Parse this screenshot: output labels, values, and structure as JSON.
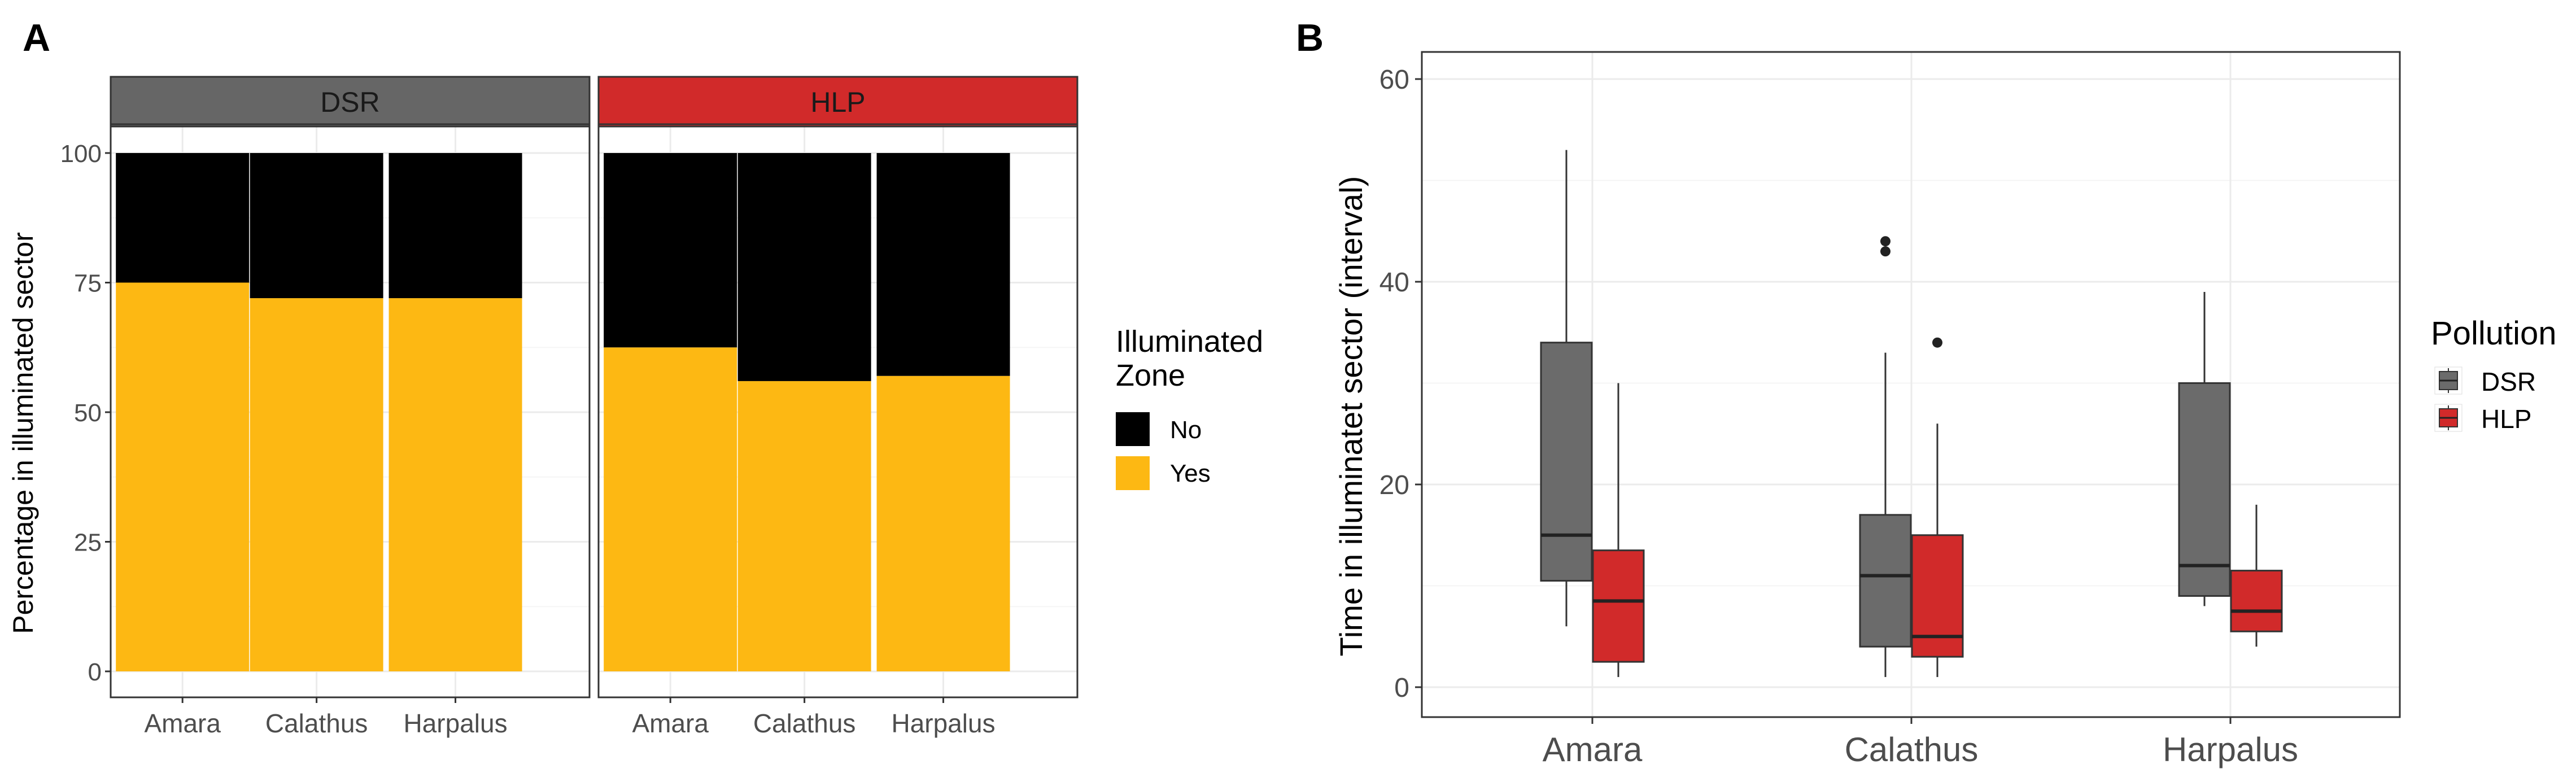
{
  "panels": {
    "a_label": "A",
    "b_label": "B"
  },
  "chart_data": [
    {
      "type": "bar",
      "subtype": "stacked-percent-faceted",
      "panel": "A",
      "ylabel": "Percentage in illuminated sector",
      "ylim": [
        0,
        100
      ],
      "yticks": [
        "0",
        "25",
        "50",
        "75",
        "100"
      ],
      "grid": true,
      "facets": [
        {
          "name": "DSR",
          "color": "#666666"
        },
        {
          "name": "HLP",
          "color": "#d12a2a"
        }
      ],
      "categories": [
        "Amara",
        "Calathus",
        "Harpalus"
      ],
      "series": [
        {
          "name": "Yes",
          "color": "#fdb813",
          "facet_values": {
            "DSR": [
              75,
              72,
              72
            ],
            "HLP": [
              62.5,
              56,
              57
            ]
          }
        },
        {
          "name": "No",
          "color": "#000000",
          "facet_values": {
            "DSR": [
              25,
              28,
              28
            ],
            "HLP": [
              37.5,
              44,
              43
            ]
          }
        }
      ],
      "legend": {
        "title_line1": "Illuminated",
        "title_line2": "Zone",
        "position": "right",
        "entries": [
          "No",
          "Yes"
        ]
      }
    },
    {
      "type": "boxplot",
      "panel": "B",
      "ylabel": "Time in illuminatet sector (interval)",
      "ylim": [
        -2.5,
        63
      ],
      "yticks": [
        "0",
        "20",
        "40",
        "60"
      ],
      "grid": true,
      "categories": [
        "Amara",
        "Calathus",
        "Harpalus"
      ],
      "series": [
        {
          "name": "DSR",
          "color": "#6b6b6b",
          "boxes": [
            {
              "category": "Amara",
              "min": 6,
              "q1": 10.5,
              "median": 15,
              "q3": 34,
              "max": 53,
              "outliers": []
            },
            {
              "category": "Calathus",
              "min": 1,
              "q1": 4,
              "median": 11,
              "q3": 17,
              "max": 33,
              "outliers": [
                43,
                44
              ]
            },
            {
              "category": "Harpalus",
              "min": 8,
              "q1": 9,
              "median": 12,
              "q3": 30,
              "max": 39,
              "outliers": []
            }
          ]
        },
        {
          "name": "HLP",
          "color": "#d12a2a",
          "boxes": [
            {
              "category": "Amara",
              "min": 1,
              "q1": 2.5,
              "median": 8.5,
              "q3": 13.5,
              "max": 30,
              "outliers": []
            },
            {
              "category": "Calathus",
              "min": 1,
              "q1": 3,
              "median": 5,
              "q3": 15,
              "max": 26,
              "outliers": [
                34
              ]
            },
            {
              "category": "Harpalus",
              "min": 4,
              "q1": 5.5,
              "median": 7.5,
              "q3": 11.5,
              "max": 18,
              "outliers": []
            }
          ]
        }
      ],
      "legend": {
        "title": "Pollution",
        "position": "right",
        "entries": [
          "DSR",
          "HLP"
        ]
      }
    }
  ]
}
